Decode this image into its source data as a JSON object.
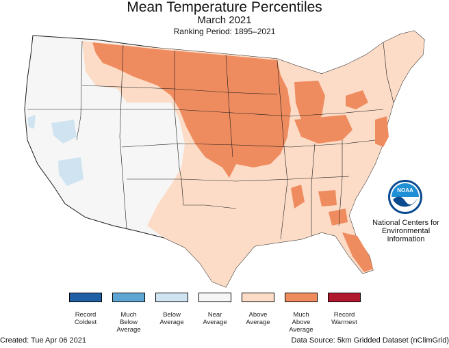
{
  "header": {
    "title": "Mean Temperature Percentiles",
    "subtitle": "March 2021",
    "period": "Ranking Period: 1895–2021"
  },
  "logo": {
    "text": "NOAA",
    "org_lines": [
      "National Centers for",
      "Environmental",
      "Information"
    ]
  },
  "legend": [
    {
      "label": "Record\nColdest",
      "color": "#1f5fa3"
    },
    {
      "label": "Much\nBelow\nAverage",
      "color": "#5fa5d4"
    },
    {
      "label": "Below\nAverage",
      "color": "#cfe3f1"
    },
    {
      "label": "Near\nAverage",
      "color": "#f6f6f6"
    },
    {
      "label": "Above\nAverage",
      "color": "#fcdcc7"
    },
    {
      "label": "Much\nAbove\nAverage",
      "color": "#ef8c5f"
    },
    {
      "label": "Record\nWarmest",
      "color": "#b0182e"
    }
  ],
  "footer": {
    "created": "Created: Tue Apr 06 2021",
    "source": "Data Source: 5km Gridded Dataset (nClimGrid)"
  },
  "colors": {
    "near": "#f6f6f6",
    "above": "#fcdcc7",
    "much_above": "#ef8c5f",
    "below": "#cfe3f1",
    "border": "#1a1a1a"
  }
}
